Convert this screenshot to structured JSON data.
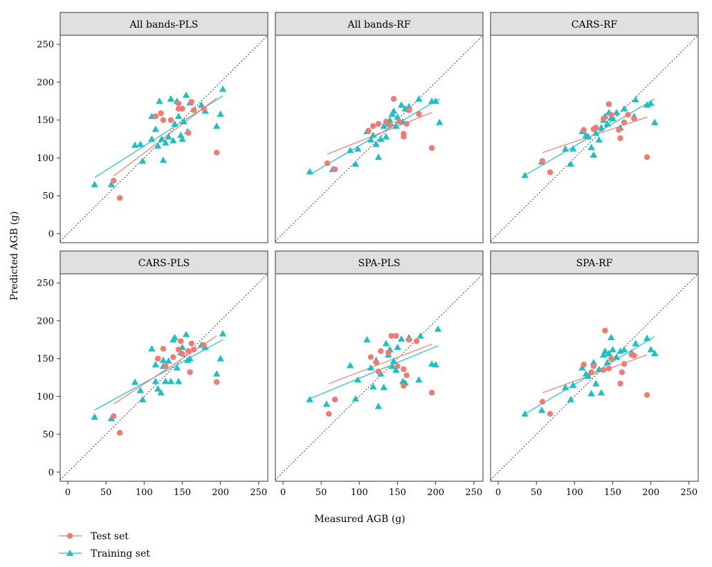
{
  "chart_data": {
    "type": "scatter",
    "xlabel": "Measured AGB (g)",
    "ylabel": "Predicted AGB (g)",
    "xlim": [
      -10,
      262
    ],
    "ylim": [
      -12,
      262
    ],
    "x_ticks": [
      0,
      50,
      100,
      150,
      200,
      250
    ],
    "y_ticks": [
      0,
      50,
      100,
      150,
      200,
      250
    ],
    "reference_line": "1:1 dotted",
    "legend": [
      {
        "name": "Test set",
        "color": "#F07B73",
        "marker": "circle"
      },
      {
        "name": "Training set",
        "color": "#1FBFC3",
        "marker": "triangle"
      }
    ],
    "panels": [
      {
        "title": "All bands-PLS",
        "test": [
          [
            60,
            70
          ],
          [
            68,
            47
          ],
          [
            115,
            155
          ],
          [
            122,
            159
          ],
          [
            125,
            150
          ],
          [
            135,
            150
          ],
          [
            145,
            172
          ],
          [
            150,
            165
          ],
          [
            162,
            174
          ],
          [
            165,
            163
          ],
          [
            178,
            165
          ],
          [
            195,
            107
          ],
          [
            145,
            165
          ],
          [
            158,
            133
          ]
        ],
        "train": [
          [
            35,
            65
          ],
          [
            57,
            65
          ],
          [
            88,
            117
          ],
          [
            95,
            118
          ],
          [
            98,
            96
          ],
          [
            110,
            155
          ],
          [
            115,
            138
          ],
          [
            118,
            116
          ],
          [
            123,
            125
          ],
          [
            125,
            97
          ],
          [
            128,
            120
          ],
          [
            132,
            128
          ],
          [
            135,
            178
          ],
          [
            138,
            123
          ],
          [
            140,
            145
          ],
          [
            143,
            175
          ],
          [
            145,
            155
          ],
          [
            148,
            130
          ],
          [
            150,
            125
          ],
          [
            152,
            148
          ],
          [
            155,
            183
          ],
          [
            157,
            135
          ],
          [
            160,
            173
          ],
          [
            175,
            170
          ],
          [
            180,
            162
          ],
          [
            195,
            142
          ],
          [
            200,
            158
          ],
          [
            203,
            191
          ],
          [
            110,
            125
          ],
          [
            120,
            175
          ]
        ],
        "test_fit": [
          [
            60,
            76
          ],
          [
            195,
            179
          ]
        ],
        "train_fit": [
          [
            35,
            74
          ],
          [
            203,
            182
          ]
        ]
      },
      {
        "title": "All bands-RF",
        "test": [
          [
            58,
            93
          ],
          [
            68,
            85
          ],
          [
            112,
            136
          ],
          [
            118,
            142
          ],
          [
            125,
            145
          ],
          [
            135,
            148
          ],
          [
            140,
            143
          ],
          [
            145,
            178
          ],
          [
            152,
            148
          ],
          [
            158,
            132
          ],
          [
            165,
            163
          ],
          [
            178,
            158
          ],
          [
            195,
            113
          ],
          [
            158,
            128
          ],
          [
            162,
            145
          ]
        ],
        "train": [
          [
            35,
            82
          ],
          [
            65,
            85
          ],
          [
            88,
            110
          ],
          [
            95,
            92
          ],
          [
            98,
            112
          ],
          [
            110,
            135
          ],
          [
            115,
            124
          ],
          [
            118,
            130
          ],
          [
            122,
            118
          ],
          [
            125,
            101
          ],
          [
            128,
            125
          ],
          [
            132,
            142
          ],
          [
            135,
            128
          ],
          [
            138,
            145
          ],
          [
            140,
            150
          ],
          [
            143,
            158
          ],
          [
            145,
            162
          ],
          [
            148,
            142
          ],
          [
            150,
            154
          ],
          [
            155,
            170
          ],
          [
            157,
            148
          ],
          [
            160,
            165
          ],
          [
            165,
            168
          ],
          [
            178,
            178
          ],
          [
            195,
            175
          ],
          [
            200,
            175
          ],
          [
            205,
            147
          ]
        ],
        "test_fit": [
          [
            58,
            105
          ],
          [
            195,
            160
          ]
        ],
        "train_fit": [
          [
            35,
            78
          ],
          [
            205,
            178
          ]
        ]
      },
      {
        "title": "CARS-RF",
        "test": [
          [
            58,
            96
          ],
          [
            68,
            81
          ],
          [
            112,
            137
          ],
          [
            125,
            138
          ],
          [
            128,
            140
          ],
          [
            138,
            152
          ],
          [
            145,
            171
          ],
          [
            148,
            157
          ],
          [
            158,
            137
          ],
          [
            160,
            126
          ],
          [
            165,
            147
          ],
          [
            170,
            157
          ],
          [
            178,
            152
          ],
          [
            195,
            101
          ]
        ],
        "train": [
          [
            35,
            77
          ],
          [
            57,
            95
          ],
          [
            88,
            112
          ],
          [
            95,
            92
          ],
          [
            98,
            112
          ],
          [
            110,
            135
          ],
          [
            115,
            130
          ],
          [
            118,
            128
          ],
          [
            122,
            114
          ],
          [
            125,
            104
          ],
          [
            128,
            133
          ],
          [
            132,
            124
          ],
          [
            135,
            140
          ],
          [
            138,
            150
          ],
          [
            140,
            155
          ],
          [
            143,
            145
          ],
          [
            145,
            160
          ],
          [
            148,
            153
          ],
          [
            150,
            152
          ],
          [
            155,
            160
          ],
          [
            160,
            140
          ],
          [
            165,
            165
          ],
          [
            178,
            155
          ],
          [
            180,
            177
          ],
          [
            195,
            170
          ],
          [
            200,
            172
          ],
          [
            205,
            147
          ]
        ],
        "test_fit": [
          [
            58,
            107
          ],
          [
            195,
            154
          ]
        ],
        "train_fit": [
          [
            35,
            77
          ],
          [
            205,
            178
          ]
        ]
      },
      {
        "title": "CARS-PLS",
        "test": [
          [
            60,
            74
          ],
          [
            68,
            52
          ],
          [
            118,
            150
          ],
          [
            125,
            163
          ],
          [
            128,
            140
          ],
          [
            138,
            152
          ],
          [
            145,
            162
          ],
          [
            148,
            173
          ],
          [
            150,
            156
          ],
          [
            158,
            160
          ],
          [
            160,
            132
          ],
          [
            162,
            170
          ],
          [
            165,
            162
          ],
          [
            178,
            168
          ],
          [
            195,
            119
          ]
        ],
        "train": [
          [
            35,
            73
          ],
          [
            57,
            71
          ],
          [
            88,
            119
          ],
          [
            95,
            108
          ],
          [
            98,
            96
          ],
          [
            110,
            163
          ],
          [
            115,
            142
          ],
          [
            118,
            110
          ],
          [
            122,
            105
          ],
          [
            125,
            140
          ],
          [
            128,
            120
          ],
          [
            132,
            147
          ],
          [
            135,
            120
          ],
          [
            138,
            175
          ],
          [
            140,
            178
          ],
          [
            143,
            138
          ],
          [
            145,
            120
          ],
          [
            148,
            158
          ],
          [
            150,
            165
          ],
          [
            155,
            182
          ],
          [
            157,
            148
          ],
          [
            160,
            150
          ],
          [
            175,
            168
          ],
          [
            180,
            165
          ],
          [
            195,
            130
          ],
          [
            200,
            150
          ],
          [
            203,
            183
          ],
          [
            115,
            120
          ],
          [
            125,
            148
          ]
        ],
        "test_fit": [
          [
            60,
            90
          ],
          [
            195,
            180
          ]
        ],
        "train_fit": [
          [
            35,
            82
          ],
          [
            203,
            175
          ]
        ]
      },
      {
        "title": "SPA-PLS",
        "test": [
          [
            60,
            77
          ],
          [
            68,
            96
          ],
          [
            115,
            152
          ],
          [
            122,
            145
          ],
          [
            125,
            133
          ],
          [
            128,
            160
          ],
          [
            138,
            158
          ],
          [
            142,
            180
          ],
          [
            148,
            180
          ],
          [
            150,
            140
          ],
          [
            158,
            114
          ],
          [
            162,
            128
          ],
          [
            165,
            175
          ],
          [
            175,
            173
          ],
          [
            195,
            105
          ],
          [
            158,
            136
          ]
        ],
        "train": [
          [
            35,
            96
          ],
          [
            57,
            90
          ],
          [
            88,
            141
          ],
          [
            95,
            97
          ],
          [
            98,
            122
          ],
          [
            110,
            175
          ],
          [
            115,
            138
          ],
          [
            118,
            113
          ],
          [
            122,
            148
          ],
          [
            125,
            87
          ],
          [
            128,
            130
          ],
          [
            132,
            112
          ],
          [
            135,
            170
          ],
          [
            138,
            155
          ],
          [
            140,
            162
          ],
          [
            143,
            140
          ],
          [
            145,
            147
          ],
          [
            148,
            135
          ],
          [
            150,
            165
          ],
          [
            155,
            176
          ],
          [
            157,
            120
          ],
          [
            160,
            118
          ],
          [
            165,
            178
          ],
          [
            178,
            122
          ],
          [
            180,
            180
          ],
          [
            195,
            143
          ],
          [
            200,
            142
          ],
          [
            203,
            189
          ]
        ],
        "test_fit": [
          [
            60,
            117
          ],
          [
            195,
            169
          ]
        ],
        "train_fit": [
          [
            35,
            97
          ],
          [
            203,
            167
          ]
        ]
      },
      {
        "title": "SPA-RF",
        "test": [
          [
            58,
            93
          ],
          [
            68,
            77
          ],
          [
            112,
            142
          ],
          [
            122,
            132
          ],
          [
            125,
            140
          ],
          [
            138,
            135
          ],
          [
            140,
            187
          ],
          [
            145,
            137
          ],
          [
            148,
            150
          ],
          [
            160,
            117
          ],
          [
            165,
            143
          ],
          [
            178,
            154
          ],
          [
            195,
            102
          ],
          [
            162,
            132
          ],
          [
            175,
            155
          ]
        ],
        "train": [
          [
            35,
            77
          ],
          [
            57,
            82
          ],
          [
            88,
            112
          ],
          [
            95,
            96
          ],
          [
            98,
            115
          ],
          [
            110,
            138
          ],
          [
            115,
            130
          ],
          [
            118,
            127
          ],
          [
            122,
            104
          ],
          [
            125,
            145
          ],
          [
            128,
            117
          ],
          [
            132,
            136
          ],
          [
            135,
            105
          ],
          [
            138,
            155
          ],
          [
            140,
            160
          ],
          [
            143,
            145
          ],
          [
            145,
            157
          ],
          [
            148,
            178
          ],
          [
            150,
            162
          ],
          [
            155,
            152
          ],
          [
            160,
            160
          ],
          [
            165,
            162
          ],
          [
            175,
            158
          ],
          [
            180,
            170
          ],
          [
            195,
            177
          ],
          [
            200,
            162
          ],
          [
            205,
            157
          ]
        ],
        "test_fit": [
          [
            58,
            105
          ],
          [
            195,
            155
          ]
        ],
        "train_fit": [
          [
            35,
            77
          ],
          [
            205,
            179
          ]
        ]
      }
    ]
  }
}
